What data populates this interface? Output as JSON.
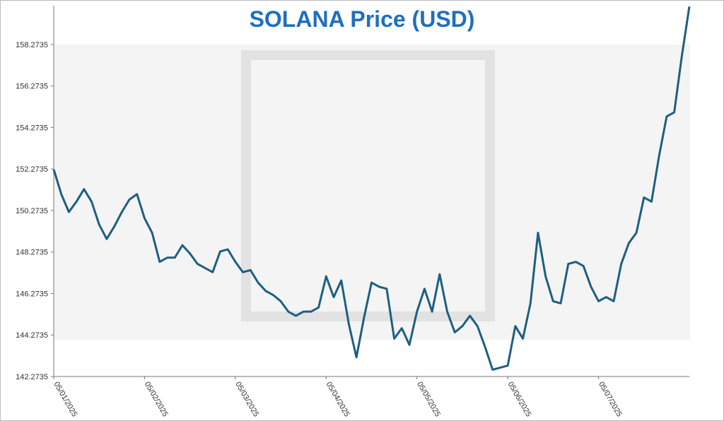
{
  "chart_data": {
    "type": "line",
    "title": "SOLANA Price (USD)",
    "categories": [
      "05/01/2025",
      null,
      null,
      null,
      null,
      null,
      null,
      null,
      null,
      null,
      null,
      null,
      "05/02/2025",
      null,
      null,
      null,
      null,
      null,
      null,
      null,
      null,
      null,
      null,
      null,
      "05/03/2025",
      null,
      null,
      null,
      null,
      null,
      null,
      null,
      null,
      null,
      null,
      null,
      "05/04/2025",
      null,
      null,
      null,
      null,
      null,
      null,
      null,
      null,
      null,
      null,
      null,
      "05/05/2025",
      null,
      null,
      null,
      null,
      null,
      null,
      null,
      null,
      null,
      null,
      null,
      "05/06/2025",
      null,
      null,
      null,
      null,
      null,
      null,
      null,
      null,
      null,
      null,
      null,
      "05/07/2025",
      null,
      null,
      null,
      null,
      null,
      null,
      null,
      null,
      null,
      null,
      null,
      null
    ],
    "series": [
      {
        "name": "SOLANA",
        "color": "#1d5f80",
        "values": [
          152.25,
          151.06,
          150.2,
          150.7,
          151.3,
          150.7,
          149.6,
          148.9,
          149.5,
          150.2,
          150.8,
          151.06,
          149.9,
          149.2,
          147.8,
          148.0,
          148.0,
          148.6,
          148.2,
          147.7,
          147.5,
          147.3,
          148.3,
          148.4,
          147.8,
          147.3,
          147.4,
          146.8,
          146.4,
          146.2,
          145.9,
          145.4,
          145.2,
          145.4,
          145.4,
          145.6,
          147.1,
          146.1,
          146.9,
          144.8,
          143.2,
          145.1,
          146.8,
          146.6,
          146.5,
          144.1,
          144.6,
          143.8,
          145.4,
          146.5,
          145.4,
          147.2,
          145.4,
          144.4,
          144.7,
          145.2,
          144.7,
          143.7,
          142.6,
          142.7,
          142.8,
          144.7,
          144.1,
          145.8,
          149.2,
          147.1,
          145.9,
          145.8,
          147.7,
          147.8,
          147.6,
          146.6,
          145.9,
          146.1,
          145.9,
          147.7,
          148.7,
          149.2,
          150.9,
          150.7,
          152.9,
          154.8,
          155.0,
          157.7,
          160.1
        ]
      }
    ],
    "ylim": [
      142.2735,
      160.1435
    ],
    "yticks": [
      142.2735,
      144.2735,
      146.2735,
      148.2735,
      150.2735,
      152.2735,
      154.2735,
      156.2735,
      158.2735
    ]
  }
}
